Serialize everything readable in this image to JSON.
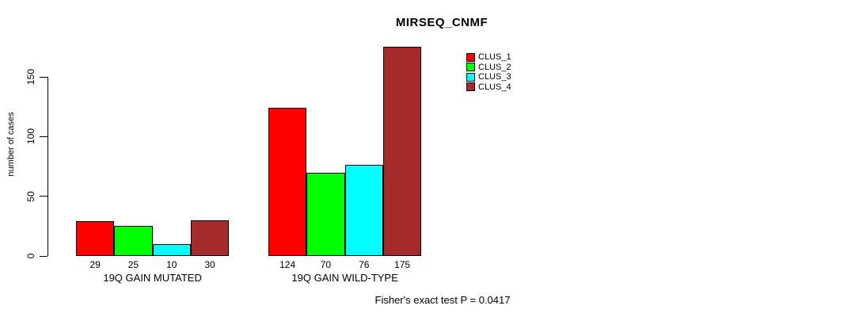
{
  "title": "MIRSEQ_CNMF",
  "footer": "Fisher's exact test P = 0.0417",
  "chart_data": {
    "type": "bar",
    "title": "MIRSEQ_CNMF",
    "ylabel": "number of cases",
    "xlabel": "",
    "categories": [
      "19Q GAIN MUTATED",
      "19Q GAIN WILD-TYPE"
    ],
    "series": [
      {
        "name": "CLUS_1",
        "color": "#FF0000",
        "values": [
          29,
          124
        ]
      },
      {
        "name": "CLUS_2",
        "color": "#00FF00",
        "values": [
          25,
          70
        ]
      },
      {
        "name": "CLUS_3",
        "color": "#00FFFF",
        "values": [
          10,
          76
        ]
      },
      {
        "name": "CLUS_4",
        "color": "#A52A2A",
        "values": [
          30,
          175
        ]
      }
    ],
    "yticks": [
      0,
      50,
      100,
      150
    ],
    "ylim": [
      0,
      183
    ],
    "grid": false,
    "bar_value_labels_shown": true,
    "legend_position": "top-right",
    "annotation": "Fisher's exact test P = 0.0417"
  }
}
